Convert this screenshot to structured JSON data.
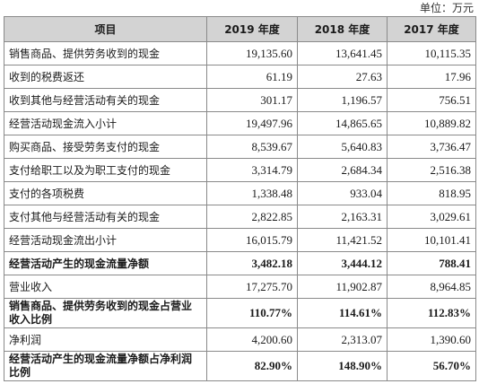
{
  "unit_label": "单位：万元",
  "headers": [
    "项目",
    "2019 年度",
    "2018 年度",
    "2017 年度"
  ],
  "rows": [
    {
      "label": "销售商品、提供劳务收到的现金",
      "values": [
        "19,135.60",
        "13,641.45",
        "10,115.35"
      ],
      "bold": false
    },
    {
      "label": "收到的税费返还",
      "values": [
        "61.19",
        "27.63",
        "17.96"
      ],
      "bold": false
    },
    {
      "label": "收到其他与经营活动有关的现金",
      "values": [
        "301.17",
        "1,196.57",
        "756.51"
      ],
      "bold": false
    },
    {
      "label": "经营活动现金流入小计",
      "values": [
        "19,497.96",
        "14,865.65",
        "10,889.82"
      ],
      "bold": false
    },
    {
      "label": "购买商品、接受劳务支付的现金",
      "values": [
        "8,539.67",
        "5,640.83",
        "3,736.47"
      ],
      "bold": false
    },
    {
      "label": "支付给职工以及为职工支付的现金",
      "values": [
        "3,314.79",
        "2,684.34",
        "2,516.38"
      ],
      "bold": false
    },
    {
      "label": "支付的各项税费",
      "values": [
        "1,338.48",
        "933.04",
        "818.95"
      ],
      "bold": false
    },
    {
      "label": "支付其他与经营活动有关的现金",
      "values": [
        "2,822.85",
        "2,163.31",
        "3,029.61"
      ],
      "bold": false
    },
    {
      "label": "经营活动现金流出小计",
      "values": [
        "16,015.79",
        "11,421.52",
        "10,101.41"
      ],
      "bold": false
    },
    {
      "label": "经营活动产生的现金流量净额",
      "values": [
        "3,482.18",
        "3,444.12",
        "788.41"
      ],
      "bold": true
    },
    {
      "label": "营业收入",
      "values": [
        "17,275.70",
        "11,902.87",
        "8,964.85"
      ],
      "bold": false
    },
    {
      "label": "销售商品、提供劳务收到的现金占营业收入比例",
      "values": [
        "110.77%",
        "114.61%",
        "112.83%"
      ],
      "bold": true
    },
    {
      "label": "净利润",
      "values": [
        "4,200.60",
        "2,313.07",
        "1,390.60"
      ],
      "bold": false
    },
    {
      "label": "经营活动产生的现金流量净额占净利润比例",
      "values": [
        "82.90%",
        "148.90%",
        "56.70%"
      ],
      "bold": true
    }
  ]
}
